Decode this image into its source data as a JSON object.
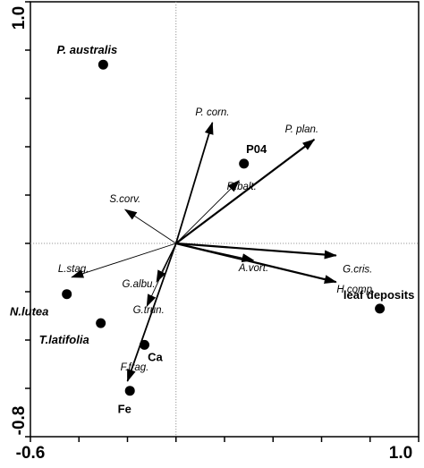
{
  "chart_data": {
    "type": "scatter",
    "title": "",
    "xlabel": "",
    "ylabel": "",
    "xlim": [
      -0.6,
      1.0
    ],
    "ylim": [
      -0.8,
      1.0
    ],
    "x_tick_labels": [
      "-0.6",
      "1.0"
    ],
    "y_tick_labels": [
      "1.0",
      "-0.8"
    ],
    "reference_lines": {
      "x": 0,
      "y": 0,
      "style": "dotted"
    },
    "species_vectors": [
      {
        "name": "P. corn.",
        "x": 0.15,
        "y": 0.5
      },
      {
        "name": "P. plan.",
        "x": 0.57,
        "y": 0.43
      },
      {
        "name": "R.balt.",
        "x": 0.26,
        "y": 0.26
      },
      {
        "name": "S.corv.",
        "x": -0.21,
        "y": 0.14
      },
      {
        "name": "L.stag.",
        "x": -0.43,
        "y": -0.14
      },
      {
        "name": "G.albu.",
        "x": -0.08,
        "y": -0.16
      },
      {
        "name": "G.trun.",
        "x": -0.12,
        "y": -0.26
      },
      {
        "name": "F.frag.",
        "x": -0.2,
        "y": -0.57
      },
      {
        "name": "G.cris.",
        "x": 0.66,
        "y": -0.05
      },
      {
        "name": "H.comp.",
        "x": 0.66,
        "y": -0.16
      },
      {
        "name": "A.vort.",
        "x": 0.32,
        "y": -0.07
      }
    ],
    "environment_points": [
      {
        "name": "P. australis",
        "x": -0.3,
        "y": 0.74,
        "italic": true
      },
      {
        "name": "P04",
        "x": 0.28,
        "y": 0.33,
        "italic": false
      },
      {
        "name": "N.lutea",
        "x": -0.45,
        "y": -0.21,
        "italic": true
      },
      {
        "name": "T.latifolia",
        "x": -0.31,
        "y": -0.33,
        "italic": true
      },
      {
        "name": "Ca",
        "x": -0.13,
        "y": -0.42,
        "italic": false
      },
      {
        "name": "Fe",
        "x": -0.19,
        "y": -0.61,
        "italic": false
      },
      {
        "name": "leaf deposits",
        "x": 0.84,
        "y": -0.27,
        "italic": false
      }
    ]
  }
}
